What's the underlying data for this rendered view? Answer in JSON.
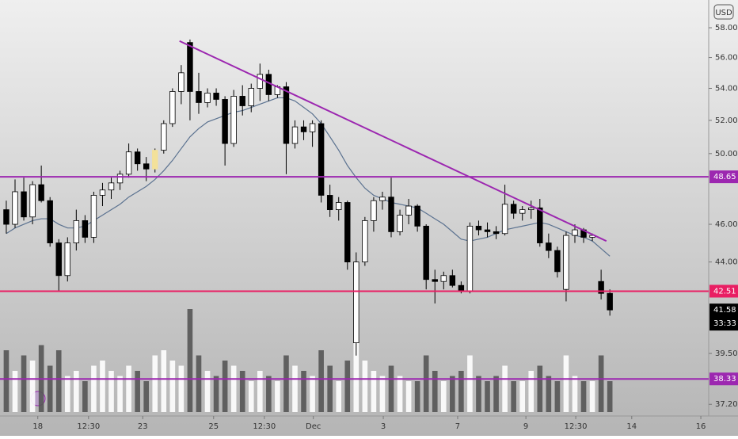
{
  "chart_data": {
    "type": "candlestick",
    "currency": "USD",
    "log_scale": true,
    "ylim": [
      36.69,
      59.93
    ],
    "yticks": [
      {
        "value": 58,
        "label": "58.00"
      },
      {
        "value": 56,
        "label": "56.00"
      },
      {
        "value": 54,
        "label": "54.00"
      },
      {
        "value": 52,
        "label": "52.00"
      },
      {
        "value": 50,
        "label": "50.00"
      },
      {
        "value": 46,
        "label": "46.00"
      },
      {
        "value": 44,
        "label": "44.00"
      },
      {
        "value": 39.5,
        "label": "39.50"
      },
      {
        "value": 37.2,
        "label": "37.20"
      }
    ],
    "xlim": [
      -0.72,
      80.3
    ],
    "xticks": [
      {
        "value": 3.6,
        "label": "18"
      },
      {
        "value": 9.4,
        "label": "12:30"
      },
      {
        "value": 15.6,
        "label": "23"
      },
      {
        "value": 23.7,
        "label": "25"
      },
      {
        "value": 29.5,
        "label": "12:30"
      },
      {
        "value": 35.1,
        "label": "Dec"
      },
      {
        "value": 43.1,
        "label": "3"
      },
      {
        "value": 51.6,
        "label": "7"
      },
      {
        "value": 59.4,
        "label": "9"
      },
      {
        "value": 65.1,
        "label": "12:30"
      },
      {
        "value": 71.5,
        "label": "14"
      },
      {
        "value": 79.4,
        "label": "16"
      }
    ],
    "open": [
      46.8,
      46.0,
      47.8,
      46.4,
      48.2,
      47.3,
      45.0,
      43.3,
      45.0,
      46.2,
      45.3,
      47.6,
      47.9,
      48.3,
      48.8,
      50.1,
      49.4,
      49.1,
      50.2,
      51.8,
      53.8,
      57.0,
      53.8,
      53.1,
      53.7,
      53.3,
      50.6,
      53.5,
      52.9,
      54.0,
      54.9,
      53.6,
      54.1,
      50.6,
      51.6,
      51.3,
      51.8,
      47.6,
      46.8,
      47.2,
      40.0,
      44.0,
      46.2,
      47.3,
      47.5,
      45.6,
      46.5,
      47.0,
      45.9,
      43.1,
      43.0,
      43.3,
      42.8,
      42.5,
      45.9,
      45.7,
      45.6,
      45.5,
      47.1,
      46.6,
      46.8,
      46.9,
      45.0,
      44.6,
      42.6,
      45.4,
      45.7,
      45.3,
      43.0,
      42.4
    ],
    "high": [
      47.3,
      48.5,
      48.6,
      48.4,
      49.3,
      47.5,
      45.2,
      45.3,
      46.8,
      46.5,
      47.8,
      48.3,
      48.6,
      49.0,
      50.6,
      50.3,
      49.8,
      50.3,
      52.0,
      54.0,
      55.5,
      57.2,
      55.0,
      54.0,
      54.0,
      53.5,
      53.9,
      54.2,
      54.3,
      55.6,
      55.2,
      54.2,
      54.4,
      52.0,
      52.0,
      52.0,
      52.0,
      48.2,
      47.5,
      47.3,
      44.5,
      46.4,
      47.5,
      47.8,
      48.6,
      46.8,
      47.4,
      47.1,
      46.0,
      43.6,
      43.5,
      43.6,
      43.0,
      46.1,
      46.2,
      46.1,
      45.9,
      48.2,
      47.3,
      47.0,
      47.3,
      47.4,
      45.5,
      44.8,
      45.6,
      46.0,
      45.8,
      45.5,
      43.6,
      42.6
    ],
    "low": [
      45.5,
      45.8,
      46.2,
      46.0,
      47.2,
      44.8,
      42.5,
      43.0,
      44.6,
      45.0,
      45.0,
      47.0,
      47.4,
      47.9,
      48.6,
      49.0,
      48.4,
      48.9,
      50.0,
      51.6,
      53.0,
      52.0,
      52.4,
      52.8,
      52.9,
      49.3,
      50.4,
      52.3,
      52.5,
      53.2,
      53.2,
      53.4,
      48.8,
      50.3,
      50.8,
      50.4,
      47.2,
      46.4,
      46.2,
      43.6,
      39.4,
      43.8,
      45.6,
      46.8,
      45.3,
      45.4,
      46.0,
      45.6,
      42.6,
      41.9,
      42.6,
      42.7,
      42.4,
      42.4,
      45.4,
      45.3,
      45.2,
      45.4,
      46.3,
      46.2,
      46.3,
      44.8,
      44.2,
      43.2,
      42.0,
      45.0,
      45.0,
      45.1,
      42.1,
      41.3
    ],
    "close": [
      46.0,
      47.8,
      46.4,
      48.2,
      47.3,
      45.0,
      43.3,
      45.0,
      46.2,
      45.3,
      47.6,
      47.9,
      48.3,
      48.8,
      50.1,
      49.4,
      49.1,
      50.2,
      51.8,
      53.8,
      55.0,
      53.8,
      53.1,
      53.7,
      53.3,
      50.6,
      53.5,
      52.9,
      54.0,
      54.9,
      53.6,
      54.1,
      50.6,
      51.6,
      51.3,
      51.8,
      47.6,
      46.8,
      47.2,
      44.0,
      44.0,
      46.2,
      47.3,
      47.5,
      45.6,
      46.5,
      47.0,
      45.9,
      43.1,
      43.0,
      43.3,
      42.8,
      42.5,
      45.9,
      45.7,
      45.6,
      45.5,
      47.1,
      46.6,
      46.8,
      46.9,
      45.0,
      44.6,
      43.5,
      45.4,
      45.7,
      45.3,
      45.4,
      42.4,
      41.58
    ],
    "volume": [
      60,
      40,
      55,
      50,
      65,
      45,
      60,
      35,
      40,
      30,
      45,
      50,
      40,
      35,
      45,
      40,
      30,
      55,
      60,
      50,
      45,
      100,
      55,
      40,
      35,
      50,
      45,
      40,
      30,
      40,
      35,
      30,
      55,
      45,
      40,
      35,
      60,
      45,
      30,
      50,
      95,
      50,
      40,
      35,
      45,
      35,
      30,
      30,
      55,
      40,
      30,
      35,
      40,
      55,
      35,
      30,
      35,
      45,
      30,
      30,
      40,
      45,
      35,
      30,
      55,
      35,
      30,
      30,
      55,
      30
    ],
    "vlim": [
      0,
      100
    ],
    "ma": [
      45.5,
      45.8,
      46.0,
      46.2,
      46.3,
      46.3,
      46.0,
      45.8,
      45.8,
      45.9,
      46.2,
      46.5,
      46.8,
      47.1,
      47.5,
      47.8,
      48.1,
      48.5,
      49.0,
      49.6,
      50.3,
      51.0,
      51.5,
      51.9,
      52.1,
      52.3,
      52.5,
      52.6,
      52.8,
      53.0,
      53.2,
      53.4,
      53.4,
      53.2,
      52.8,
      52.4,
      51.8,
      51.0,
      50.2,
      49.3,
      48.6,
      48.0,
      47.6,
      47.4,
      47.2,
      47.1,
      47.0,
      46.9,
      46.6,
      46.3,
      46.0,
      45.6,
      45.2,
      45.1,
      45.2,
      45.3,
      45.5,
      45.7,
      45.8,
      45.9,
      46.0,
      46.1,
      46.0,
      45.8,
      45.6,
      45.4,
      45.3,
      45.1,
      44.7,
      44.3
    ],
    "ma_color": "#5b7290",
    "levels": [
      {
        "value": 48.65,
        "color": "#9c27b0"
      },
      {
        "value": 42.51,
        "color": "#e91e63"
      },
      {
        "value": 38.33,
        "color": "#9c27b0"
      }
    ],
    "trendline": {
      "start": [
        19.8,
        57.1
      ],
      "end": [
        68.6,
        45.1
      ],
      "color": "#9c27b0"
    },
    "countdown": "33:33",
    "highlight": {
      "index": 17,
      "color": "#f3e19a"
    }
  }
}
